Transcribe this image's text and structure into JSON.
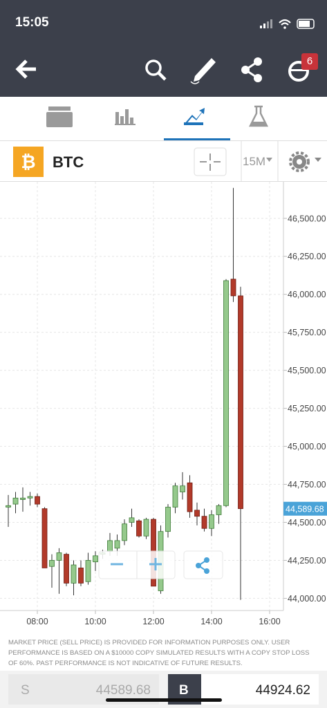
{
  "status_bar": {
    "time": "15:05"
  },
  "toolbar": {
    "notification_count": "6"
  },
  "instrument": {
    "symbol": "BTC",
    "timeframe": "15M"
  },
  "chart_data": {
    "type": "candlestick",
    "x": [
      7.0,
      7.25,
      7.5,
      7.75,
      8.0,
      8.25,
      8.5,
      8.75,
      9.0,
      9.25,
      9.5,
      9.75,
      10.0,
      10.25,
      10.5,
      10.75,
      11.0,
      11.25,
      11.5,
      11.75,
      12.0,
      12.25,
      12.5,
      12.75,
      13.0,
      13.25,
      13.5,
      13.75,
      14.0,
      14.25,
      14.5,
      14.75,
      15.0
    ],
    "open": [
      44600,
      44620,
      44650,
      44660,
      44670,
      44590,
      44210,
      44250,
      44290,
      44100,
      44200,
      44110,
      44240,
      44290,
      44310,
      44330,
      44380,
      44500,
      44510,
      44410,
      44520,
      44050,
      44440,
      44600,
      44700,
      44760,
      44580,
      44540,
      44460,
      44550,
      44610,
      46100,
      45990
    ],
    "high": [
      44680,
      44700,
      44730,
      44700,
      44690,
      44600,
      44290,
      44330,
      44300,
      44250,
      44250,
      44300,
      44310,
      44320,
      44430,
      44420,
      44520,
      44590,
      44520,
      44530,
      44530,
      44480,
      44620,
      44760,
      44830,
      44810,
      44630,
      44590,
      44580,
      44620,
      46100,
      46700,
      46050
    ],
    "low": [
      44470,
      44560,
      44570,
      44610,
      44600,
      44200,
      44070,
      44030,
      44080,
      44020,
      44080,
      44090,
      44180,
      44260,
      44280,
      44280,
      44350,
      44470,
      44400,
      44390,
      44080,
      44030,
      44400,
      44560,
      44650,
      44530,
      44480,
      44440,
      44410,
      44490,
      44600,
      45950,
      43990
    ],
    "close": [
      44610,
      44660,
      44660,
      44670,
      44620,
      44200,
      44250,
      44300,
      44100,
      44220,
      44100,
      44250,
      44280,
      44300,
      44380,
      44380,
      44490,
      44530,
      44410,
      44520,
      44080,
      44440,
      44600,
      44740,
      44740,
      44570,
      44540,
      44460,
      44550,
      44610,
      46090,
      45990,
      44590
    ],
    "up_color": "#95c98c",
    "down_color": "#b23a2a",
    "xlim": [
      6.714,
      16.476
    ],
    "xticks": [
      {
        "value": 8,
        "label": "08:00"
      },
      {
        "value": 10,
        "label": "10:00"
      },
      {
        "value": 12,
        "label": "12:00"
      },
      {
        "value": 14,
        "label": "14:00"
      },
      {
        "value": 16,
        "label": "16:00"
      }
    ],
    "ylim": [
      43920,
      46740
    ],
    "yticks": [
      {
        "value": 44000,
        "label": "44,000.00"
      },
      {
        "value": 44250,
        "label": "44,250.00"
      },
      {
        "value": 44500,
        "label": "44,500.00"
      },
      {
        "value": 44750,
        "label": "44,750.00"
      },
      {
        "value": 45000,
        "label": "45,000.00"
      },
      {
        "value": 45250,
        "label": "45,250.00"
      },
      {
        "value": 45500,
        "label": "45,500.00"
      },
      {
        "value": 45750,
        "label": "45,750.00"
      },
      {
        "value": 46000,
        "label": "46,000.00"
      },
      {
        "value": 46250,
        "label": "46,250.00"
      },
      {
        "value": 46500,
        "label": "46,500.00"
      }
    ],
    "grid": true,
    "last_price": {
      "value": 44589.68,
      "label": "44,589.68"
    }
  },
  "disclaimer": "MARKET PRICE (SELL PRICE) IS PROVIDED FOR INFORMATION PURPOSES ONLY. USER PERFORMANCE IS BASED ON A $10000 COPY SIMULATED RESULTS WITH A COPY STOP LOSS OF 60%. PAST PERFORMANCE IS NOT INDICATIVE OF FUTURE RESULTS.",
  "trade": {
    "sell_label": "S",
    "sell_price": "44589.68",
    "buy_label": "B",
    "buy_price": "44924.62"
  }
}
